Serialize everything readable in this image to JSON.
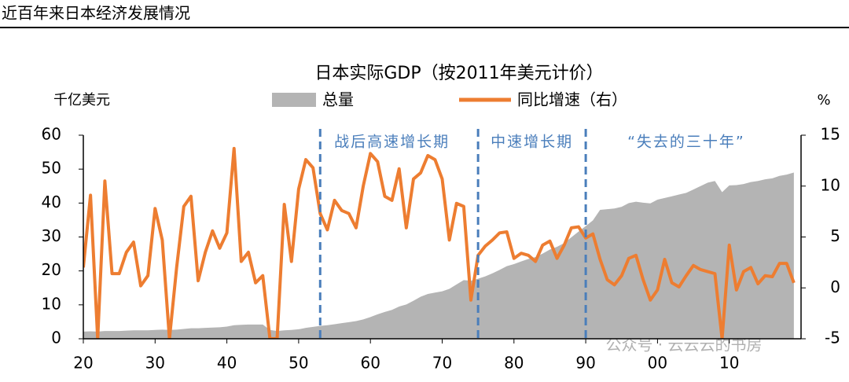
{
  "header": "近百年来日本经济发展情况",
  "watermark": "公众号 · 云云云的书房",
  "chart_data": {
    "type": "area-line",
    "title": "日本实际GDP（按2011年美元计价）",
    "y_label": "千亿美元",
    "y2_label": "%",
    "x": [
      1920,
      1921,
      1922,
      1923,
      1924,
      1925,
      1926,
      1927,
      1928,
      1929,
      1930,
      1931,
      1932,
      1933,
      1934,
      1935,
      1936,
      1937,
      1938,
      1939,
      1940,
      1941,
      1942,
      1943,
      1944,
      1945,
      1946,
      1947,
      1948,
      1949,
      1950,
      1951,
      1952,
      1953,
      1954,
      1955,
      1956,
      1957,
      1958,
      1959,
      1960,
      1961,
      1962,
      1963,
      1964,
      1965,
      1966,
      1967,
      1968,
      1969,
      1970,
      1971,
      1972,
      1973,
      1974,
      1975,
      1976,
      1977,
      1978,
      1979,
      1980,
      1981,
      1982,
      1983,
      1984,
      1985,
      1986,
      1987,
      1988,
      1989,
      1990,
      1991,
      1992,
      1993,
      1994,
      1995,
      1996,
      1997,
      1998,
      1999,
      2000,
      2001,
      2002,
      2003,
      2004,
      2005,
      2006,
      2007,
      2008,
      2009,
      2010,
      2011,
      2012,
      2013,
      2014,
      2015,
      2016,
      2017,
      2018,
      2019
    ],
    "series": [
      {
        "name": "总量",
        "color": "#b4b4b4",
        "kind": "area",
        "values": [
          2.1,
          2.2,
          2.1,
          2.3,
          2.3,
          2.3,
          2.4,
          2.5,
          2.5,
          2.5,
          2.6,
          2.7,
          2.6,
          2.7,
          2.9,
          3.1,
          3.1,
          3.2,
          3.3,
          3.4,
          3.6,
          4.0,
          4.1,
          4.2,
          4.2,
          4.2,
          2.6,
          2.3,
          2.5,
          2.6,
          2.8,
          3.2,
          3.5,
          3.8,
          4.0,
          4.3,
          4.6,
          4.9,
          5.2,
          5.7,
          6.4,
          7.2,
          7.9,
          8.5,
          9.5,
          10.1,
          11.2,
          12.4,
          13.2,
          13.6,
          14.0,
          14.7,
          16.0,
          17.3,
          17.1,
          17.7,
          18.4,
          19.3,
          20.3,
          21.4,
          22.0,
          22.8,
          23.5,
          24.1,
          25.1,
          26.3,
          27.1,
          28.2,
          29.9,
          31.6,
          33.2,
          34.9,
          38.0,
          38.2,
          38.4,
          38.9,
          40.0,
          40.4,
          40.1,
          39.9,
          41.0,
          41.5,
          42.0,
          42.5,
          43.0,
          44.0,
          45.0,
          46.0,
          46.5,
          43.2,
          45.2,
          45.3,
          45.6,
          46.2,
          46.5,
          47.0,
          47.3,
          48.0,
          48.4,
          49.0
        ]
      },
      {
        "name": "同比增速（右）",
        "color": "#ed7d31",
        "kind": "line",
        "axis": "y2",
        "values": [
          2.0,
          9.1,
          -5,
          10.5,
          1.4,
          1.4,
          3.5,
          4.5,
          0.2,
          1.2,
          7.8,
          4.7,
          -5,
          2.0,
          8.0,
          9.0,
          0.7,
          3.5,
          5.6,
          3.9,
          5.4,
          13.7,
          2.6,
          3.5,
          0.5,
          1.2,
          -5,
          -5,
          8.2,
          2.6,
          9.7,
          12.6,
          11.8,
          7.3,
          5.7,
          8.6,
          7.6,
          7.3,
          5.9,
          10.0,
          13.2,
          12.4,
          9.0,
          8.6,
          11.7,
          5.9,
          10.7,
          11.3,
          13.0,
          12.6,
          10.7,
          4.7,
          8.3,
          8.0,
          -1.2,
          3.2,
          4.1,
          4.7,
          5.4,
          5.5,
          2.9,
          3.4,
          3.2,
          2.6,
          4.2,
          4.6,
          2.9,
          4.2,
          5.9,
          6.0,
          4.9,
          5.3,
          2.8,
          0.8,
          0.3,
          1.2,
          2.9,
          3.2,
          0.8,
          -1.2,
          -0.2,
          2.8,
          0.5,
          0.1,
          1.2,
          2.2,
          1.8,
          1.6,
          1.4,
          -5,
          4.2,
          -0.2,
          1.6,
          2.0,
          0.4,
          1.2,
          1.1,
          2.4,
          2.4,
          0.5
        ]
      }
    ],
    "xlim": [
      1920,
      2020
    ],
    "xticks": [
      {
        "value": 1920,
        "label": "20"
      },
      {
        "value": 1930,
        "label": "30"
      },
      {
        "value": 1940,
        "label": "40"
      },
      {
        "value": 1950,
        "label": "50"
      },
      {
        "value": 1960,
        "label": "60"
      },
      {
        "value": 1970,
        "label": "70"
      },
      {
        "value": 1980,
        "label": "80"
      },
      {
        "value": 1990,
        "label": "90"
      },
      {
        "value": 2000,
        "label": "00"
      },
      {
        "value": 2010,
        "label": "10"
      }
    ],
    "ylim": [
      0,
      60
    ],
    "yticks": [
      0,
      10,
      20,
      30,
      40,
      50,
      60
    ],
    "y2lim": [
      -5,
      15
    ],
    "y2ticks": [
      -5,
      0,
      5,
      10,
      15
    ],
    "dividers": [
      1953,
      1975,
      1990
    ],
    "divider_color": "#4a7ebb",
    "annotations": [
      {
        "text": "战后高速增长期",
        "x": 1963
      },
      {
        "text": "中速增长期",
        "x": 1982.5
      },
      {
        "text": "“失去的三十年”",
        "x": 2004
      }
    ]
  }
}
